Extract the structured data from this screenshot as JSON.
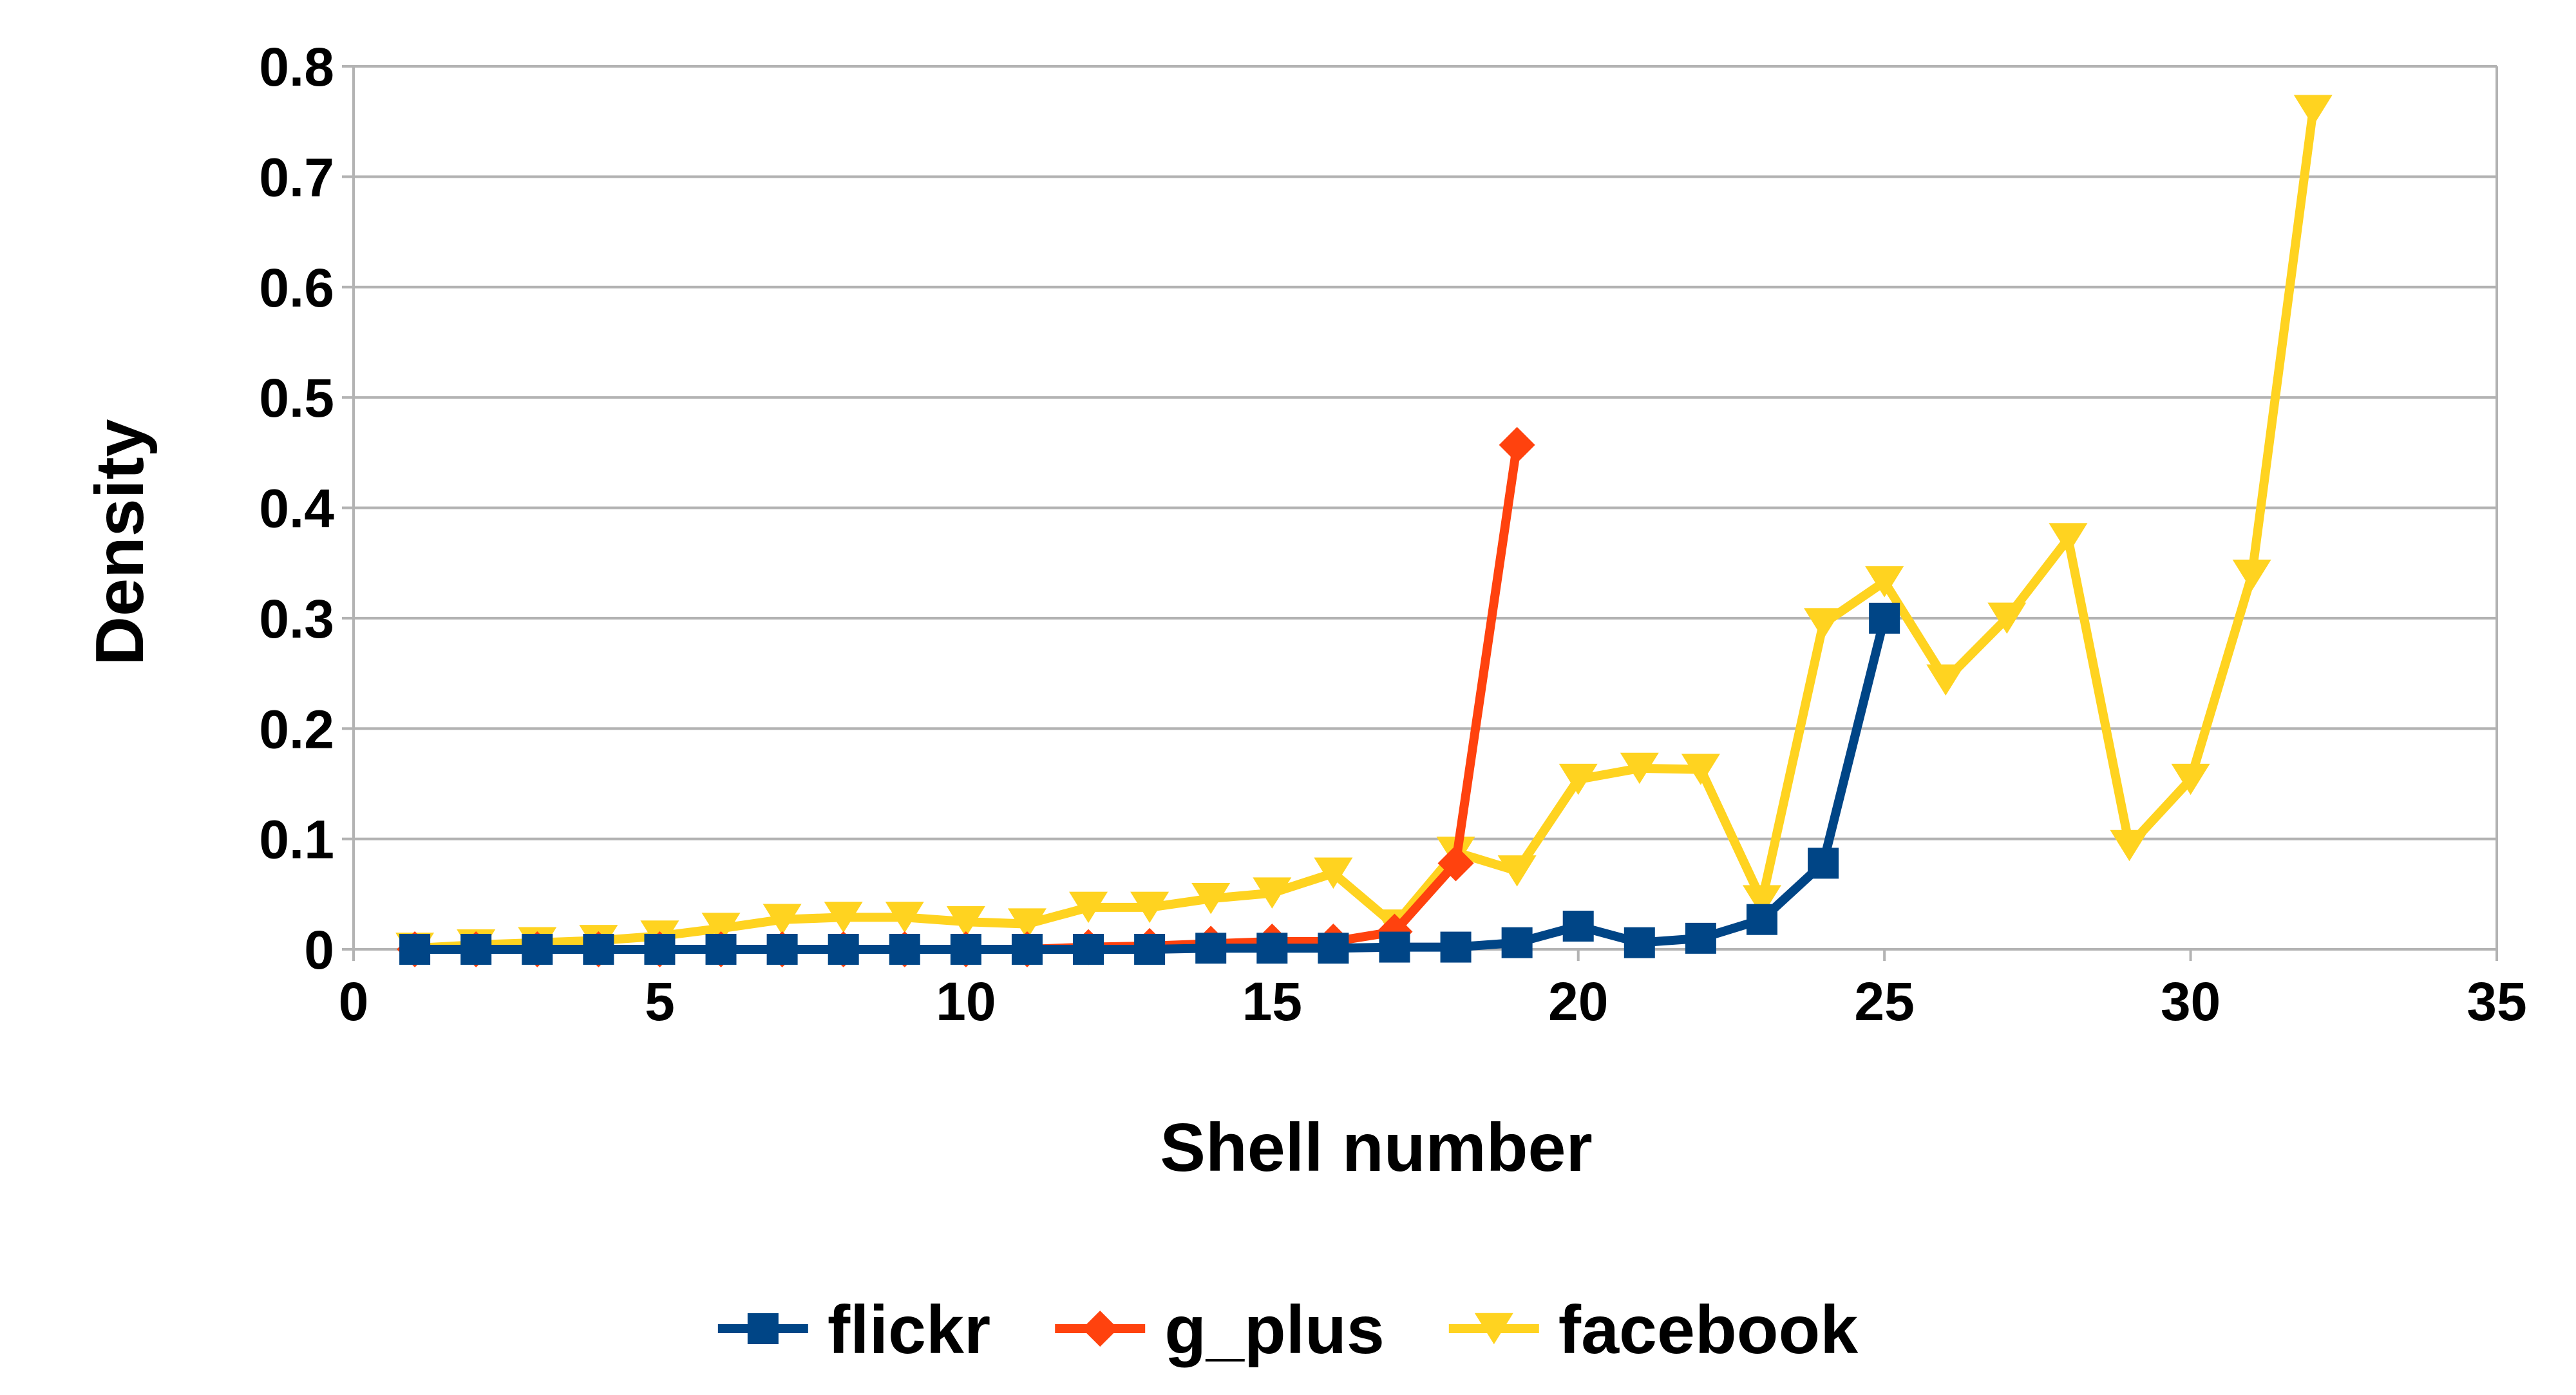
{
  "chart_data": {
    "type": "line",
    "title": "",
    "xlabel": "Shell number",
    "ylabel": "Density",
    "xlim": [
      0,
      35
    ],
    "ylim": [
      0,
      0.8
    ],
    "xticks": [
      0,
      5,
      10,
      15,
      20,
      25,
      30,
      35
    ],
    "yticks": [
      0,
      0.1,
      0.2,
      0.3,
      0.4,
      0.5,
      0.6,
      0.7,
      0.8
    ],
    "xtick_labels": [
      "0",
      "5",
      "10",
      "15",
      "20",
      "25",
      "30",
      "35"
    ],
    "ytick_labels": [
      "0",
      "0.1",
      "0.2",
      "0.3",
      "0.4",
      "0.5",
      "0.6",
      "0.7",
      "0.8"
    ],
    "grid": "horizontal",
    "legend_position": "bottom",
    "series": [
      {
        "name": "flickr",
        "color": "#004586",
        "marker": "square",
        "x": [
          1,
          2,
          3,
          4,
          5,
          6,
          7,
          8,
          9,
          10,
          11,
          12,
          13,
          14,
          15,
          16,
          17,
          18,
          19,
          20,
          21,
          22,
          23,
          24,
          25
        ],
        "y": [
          0,
          0,
          0,
          0,
          0,
          0,
          0,
          0,
          0,
          0,
          0,
          0,
          0,
          0.001,
          0.001,
          0.001,
          0.002,
          0.002,
          0.006,
          0.021,
          0.006,
          0.01,
          0.027,
          0.078,
          0.3
        ]
      },
      {
        "name": "g_plus",
        "color": "#ff420e",
        "marker": "diamond",
        "x": [
          1,
          2,
          3,
          4,
          5,
          6,
          7,
          8,
          9,
          10,
          11,
          12,
          13,
          14,
          15,
          16,
          17,
          18,
          19
        ],
        "y": [
          0,
          0,
          0,
          0,
          0,
          0,
          0,
          0,
          0,
          0,
          0,
          0.002,
          0.003,
          0.005,
          0.007,
          0.007,
          0.016,
          0.078,
          0.457
        ]
      },
      {
        "name": "facebook",
        "color": "#ffd320",
        "marker": "triangle-down",
        "x": [
          1,
          2,
          3,
          4,
          5,
          6,
          7,
          8,
          9,
          10,
          11,
          12,
          13,
          14,
          15,
          16,
          17,
          18,
          19,
          20,
          21,
          22,
          23,
          24,
          25,
          26,
          27,
          28,
          29,
          30,
          31,
          32
        ],
        "y": [
          0.001,
          0.004,
          0.006,
          0.008,
          0.012,
          0.019,
          0.027,
          0.029,
          0.029,
          0.025,
          0.023,
          0.038,
          0.038,
          0.046,
          0.051,
          0.069,
          0.022,
          0.088,
          0.071,
          0.154,
          0.164,
          0.163,
          0.044,
          0.295,
          0.333,
          0.244,
          0.3,
          0.372,
          0.094,
          0.154,
          0.339,
          0.76
        ]
      }
    ]
  }
}
